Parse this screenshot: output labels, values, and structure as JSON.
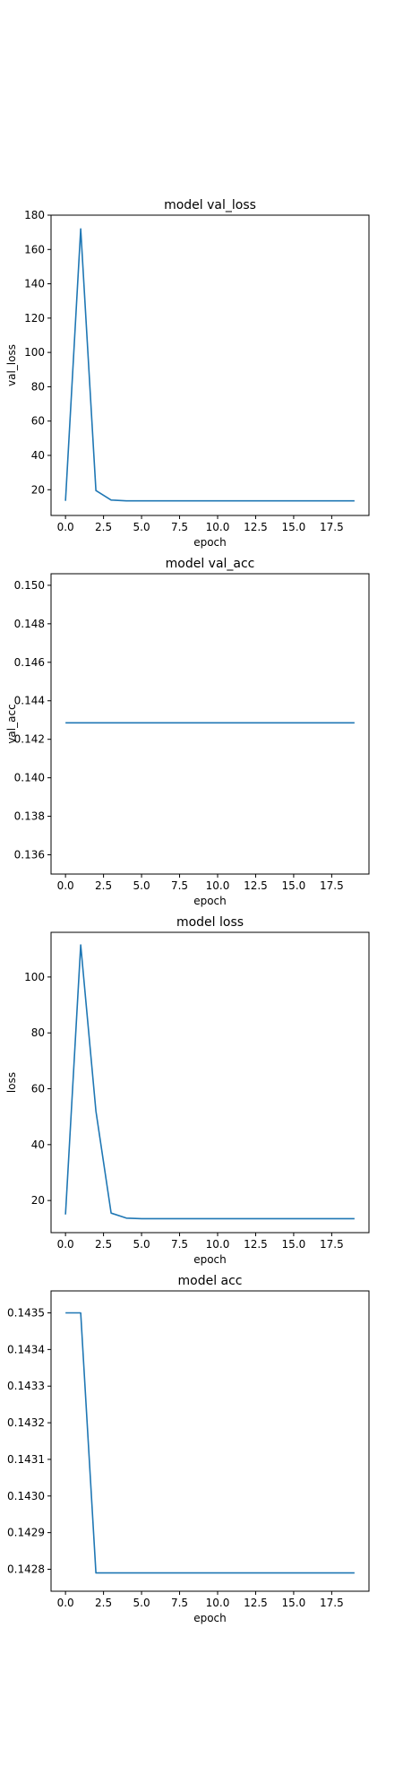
{
  "series_color": "#1f77b4",
  "chart_data": [
    {
      "type": "line",
      "title": "model val_loss",
      "xlabel": "epoch",
      "ylabel": "val_loss",
      "xlim": [
        -0.95,
        19.95
      ],
      "ylim": [
        5,
        180
      ],
      "xticks": [
        0,
        2.5,
        5,
        7.5,
        10,
        12.5,
        15,
        17.5
      ],
      "xtick_labels": [
        "0.0",
        "2.5",
        "5.0",
        "7.5",
        "10.0",
        "12.5",
        "15.0",
        "17.5"
      ],
      "yticks": [
        20,
        40,
        60,
        80,
        100,
        120,
        140,
        160,
        180
      ],
      "ytick_labels": [
        "20",
        "40",
        "60",
        "80",
        "100",
        "120",
        "140",
        "160",
        "180"
      ],
      "grid": false,
      "x": [
        0,
        1,
        2,
        3,
        4,
        5,
        6,
        7,
        8,
        9,
        10,
        11,
        12,
        13,
        14,
        15,
        16,
        17,
        18,
        19
      ],
      "y": [
        13.5,
        172,
        19.5,
        14,
        13.5,
        13.5,
        13.5,
        13.5,
        13.5,
        13.5,
        13.5,
        13.5,
        13.5,
        13.5,
        13.5,
        13.5,
        13.5,
        13.5,
        13.5,
        13.5
      ]
    },
    {
      "type": "line",
      "title": "model val_acc",
      "xlabel": "epoch",
      "ylabel": "val_acc",
      "xlim": [
        -0.95,
        19.95
      ],
      "ylim": [
        0.135,
        0.1506
      ],
      "xticks": [
        0,
        2.5,
        5,
        7.5,
        10,
        12.5,
        15,
        17.5
      ],
      "xtick_labels": [
        "0.0",
        "2.5",
        "5.0",
        "7.5",
        "10.0",
        "12.5",
        "15.0",
        "17.5"
      ],
      "yticks": [
        0.136,
        0.138,
        0.14,
        0.142,
        0.144,
        0.146,
        0.148,
        0.15
      ],
      "ytick_labels": [
        "0.136",
        "0.138",
        "0.140",
        "0.142",
        "0.144",
        "0.146",
        "0.148",
        "0.150"
      ],
      "grid": false,
      "x": [
        0,
        1,
        2,
        3,
        4,
        5,
        6,
        7,
        8,
        9,
        10,
        11,
        12,
        13,
        14,
        15,
        16,
        17,
        18,
        19
      ],
      "y": [
        0.142857,
        0.142857,
        0.142857,
        0.142857,
        0.142857,
        0.142857,
        0.142857,
        0.142857,
        0.142857,
        0.142857,
        0.142857,
        0.142857,
        0.142857,
        0.142857,
        0.142857,
        0.142857,
        0.142857,
        0.142857,
        0.142857,
        0.142857
      ]
    },
    {
      "type": "line",
      "title": "model loss",
      "xlabel": "epoch",
      "ylabel": "loss",
      "xlim": [
        -0.95,
        19.95
      ],
      "ylim": [
        8.5,
        116
      ],
      "xticks": [
        0,
        2.5,
        5,
        7.5,
        10,
        12.5,
        15,
        17.5
      ],
      "xtick_labels": [
        "0.0",
        "2.5",
        "5.0",
        "7.5",
        "10.0",
        "12.5",
        "15.0",
        "17.5"
      ],
      "yticks": [
        20,
        40,
        60,
        80,
        100
      ],
      "ytick_labels": [
        "20",
        "40",
        "60",
        "80",
        "100"
      ],
      "grid": false,
      "x": [
        0,
        1,
        2,
        3,
        4,
        5,
        6,
        7,
        8,
        9,
        10,
        11,
        12,
        13,
        14,
        15,
        16,
        17,
        18,
        19
      ],
      "y": [
        15,
        111.5,
        52,
        15.5,
        13.7,
        13.5,
        13.5,
        13.5,
        13.5,
        13.5,
        13.5,
        13.5,
        13.5,
        13.5,
        13.5,
        13.5,
        13.5,
        13.5,
        13.5,
        13.5
      ]
    },
    {
      "type": "line",
      "title": "model acc",
      "xlabel": "epoch",
      "ylabel": "",
      "xlim": [
        -0.95,
        19.95
      ],
      "ylim": [
        0.14274,
        0.14356
      ],
      "xticks": [
        0,
        2.5,
        5,
        7.5,
        10,
        12.5,
        15,
        17.5
      ],
      "xtick_labels": [
        "0.0",
        "2.5",
        "5.0",
        "7.5",
        "10.0",
        "12.5",
        "15.0",
        "17.5"
      ],
      "yticks": [
        0.1428,
        0.1429,
        0.143,
        0.1431,
        0.1432,
        0.1433,
        0.1434,
        0.1435
      ],
      "ytick_labels": [
        "0.1428",
        "0.1429",
        "0.1430",
        "0.1431",
        "0.1432",
        "0.1433",
        "0.1434",
        "0.1435"
      ],
      "grid": false,
      "x": [
        0,
        1,
        2,
        3,
        4,
        5,
        6,
        7,
        8,
        9,
        10,
        11,
        12,
        13,
        14,
        15,
        16,
        17,
        18,
        19
      ],
      "y": [
        0.1435,
        0.1435,
        0.14279,
        0.14279,
        0.14279,
        0.14279,
        0.14279,
        0.14279,
        0.14279,
        0.14279,
        0.14279,
        0.14279,
        0.14279,
        0.14279,
        0.14279,
        0.14279,
        0.14279,
        0.14279,
        0.14279,
        0.14279
      ]
    }
  ]
}
